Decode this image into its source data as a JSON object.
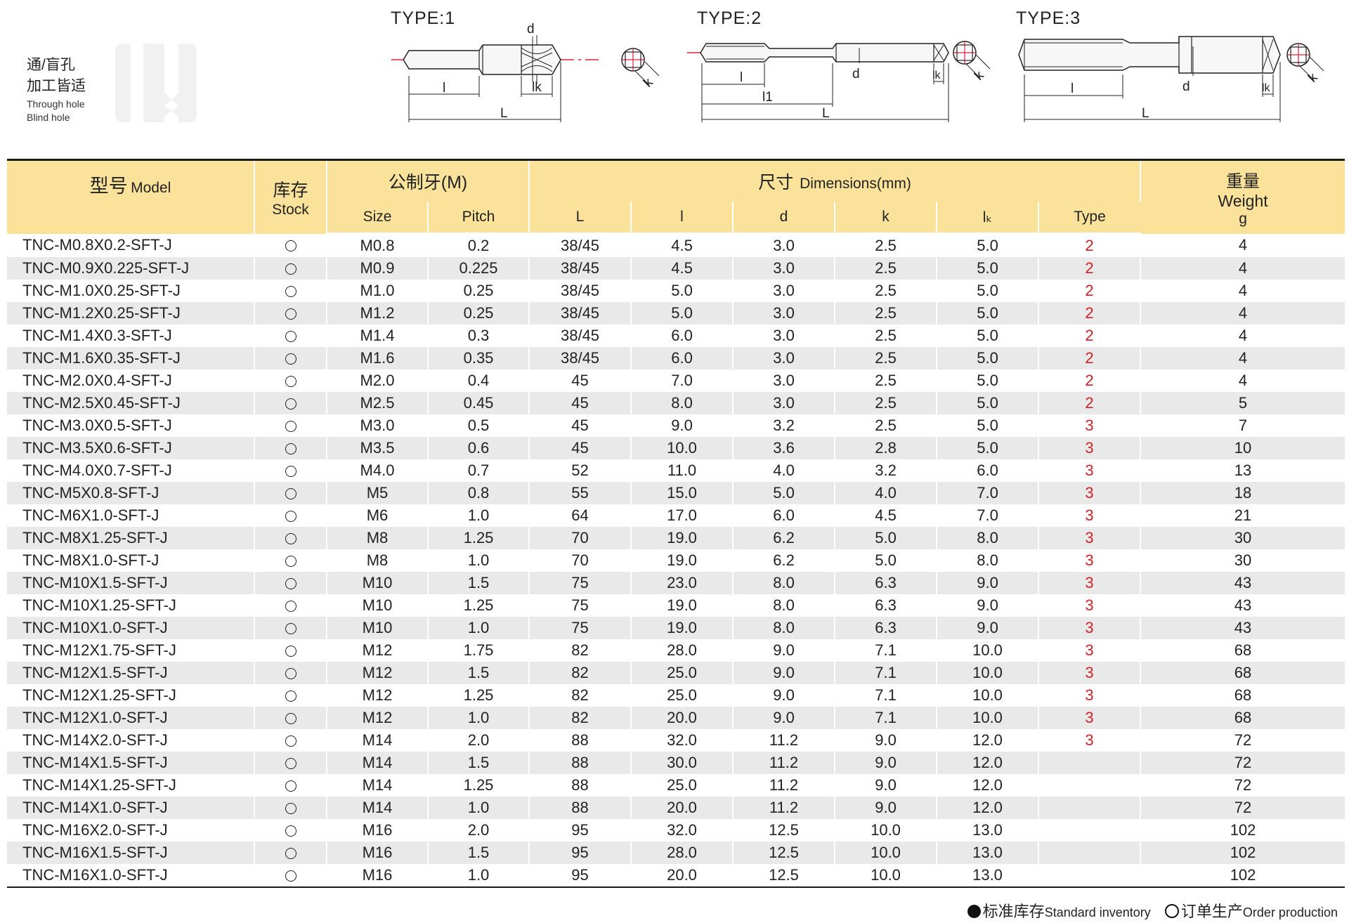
{
  "usage": {
    "line1": "通/盲孔",
    "line2": "加工皆适",
    "en1": "Through hole",
    "en2": "Blind hole"
  },
  "diagrams": [
    {
      "type_label": "TYPE:1",
      "labels": {
        "d": "d",
        "l": "l",
        "lk": "lk",
        "L": "L",
        "k": "k"
      }
    },
    {
      "type_label": "TYPE:2",
      "labels": {
        "d": "d",
        "l": "l",
        "l1": "l1",
        "lk": "lk",
        "L": "L",
        "k": "k"
      }
    },
    {
      "type_label": "TYPE:3",
      "labels": {
        "d": "d",
        "l": "l",
        "lk": "lk",
        "L": "L",
        "k": "k"
      }
    }
  ],
  "colors": {
    "header_bg": "#fbe29a",
    "stripe": "#e9e9e9",
    "type_red": "#d0202a",
    "centerline_red": "#e0203a"
  },
  "table": {
    "headers": {
      "model_cn": "型号",
      "model_en": "Model",
      "stock_cn": "库存",
      "stock_en": "Stock",
      "metric_cn": "公制牙(M)",
      "size": "Size",
      "pitch": "Pitch",
      "dims_cn": "尺寸",
      "dims_en": "Dimensions(mm)",
      "L": "L",
      "l": "l",
      "d": "d",
      "k": "k",
      "lk": "lₖ",
      "type": "Type",
      "weight_cn": "重量",
      "weight_en": "Weight",
      "weight_unit": "g"
    },
    "rows": [
      {
        "model": "TNC-M0.8X0.2-SFT-J",
        "size": "M0.8",
        "pitch": "0.2",
        "L": "38/45",
        "l": "4.5",
        "d": "3.0",
        "k": "2.5",
        "lk": "5.0",
        "type": "2",
        "weight": "4"
      },
      {
        "model": "TNC-M0.9X0.225-SFT-J",
        "size": "M0.9",
        "pitch": "0.225",
        "L": "38/45",
        "l": "4.5",
        "d": "3.0",
        "k": "2.5",
        "lk": "5.0",
        "type": "2",
        "weight": "4"
      },
      {
        "model": "TNC-M1.0X0.25-SFT-J",
        "size": "M1.0",
        "pitch": "0.25",
        "L": "38/45",
        "l": "5.0",
        "d": "3.0",
        "k": "2.5",
        "lk": "5.0",
        "type": "2",
        "weight": "4"
      },
      {
        "model": "TNC-M1.2X0.25-SFT-J",
        "size": "M1.2",
        "pitch": "0.25",
        "L": "38/45",
        "l": "5.0",
        "d": "3.0",
        "k": "2.5",
        "lk": "5.0",
        "type": "2",
        "weight": "4"
      },
      {
        "model": "TNC-M1.4X0.3-SFT-J",
        "size": "M1.4",
        "pitch": "0.3",
        "L": "38/45",
        "l": "6.0",
        "d": "3.0",
        "k": "2.5",
        "lk": "5.0",
        "type": "2",
        "weight": "4"
      },
      {
        "model": "TNC-M1.6X0.35-SFT-J",
        "size": "M1.6",
        "pitch": "0.35",
        "L": "38/45",
        "l": "6.0",
        "d": "3.0",
        "k": "2.5",
        "lk": "5.0",
        "type": "2",
        "weight": "4"
      },
      {
        "model": "TNC-M2.0X0.4-SFT-J",
        "size": "M2.0",
        "pitch": "0.4",
        "L": "45",
        "l": "7.0",
        "d": "3.0",
        "k": "2.5",
        "lk": "5.0",
        "type": "2",
        "weight": "4"
      },
      {
        "model": "TNC-M2.5X0.45-SFT-J",
        "size": "M2.5",
        "pitch": "0.45",
        "L": "45",
        "l": "8.0",
        "d": "3.0",
        "k": "2.5",
        "lk": "5.0",
        "type": "2",
        "weight": "5"
      },
      {
        "model": "TNC-M3.0X0.5-SFT-J",
        "size": "M3.0",
        "pitch": "0.5",
        "L": "45",
        "l": "9.0",
        "d": "3.2",
        "k": "2.5",
        "lk": "5.0",
        "type": "3",
        "weight": "7"
      },
      {
        "model": "TNC-M3.5X0.6-SFT-J",
        "size": "M3.5",
        "pitch": "0.6",
        "L": "45",
        "l": "10.0",
        "d": "3.6",
        "k": "2.8",
        "lk": "5.0",
        "type": "3",
        "weight": "10"
      },
      {
        "model": "TNC-M4.0X0.7-SFT-J",
        "size": "M4.0",
        "pitch": "0.7",
        "L": "52",
        "l": "11.0",
        "d": "4.0",
        "k": "3.2",
        "lk": "6.0",
        "type": "3",
        "weight": "13"
      },
      {
        "model": "TNC-M5X0.8-SFT-J",
        "size": "M5",
        "pitch": "0.8",
        "L": "55",
        "l": "15.0",
        "d": "5.0",
        "k": "4.0",
        "lk": "7.0",
        "type": "3",
        "weight": "18"
      },
      {
        "model": "TNC-M6X1.0-SFT-J",
        "size": "M6",
        "pitch": "1.0",
        "L": "64",
        "l": "17.0",
        "d": "6.0",
        "k": "4.5",
        "lk": "7.0",
        "type": "3",
        "weight": "21"
      },
      {
        "model": "TNC-M8X1.25-SFT-J",
        "size": "M8",
        "pitch": "1.25",
        "L": "70",
        "l": "19.0",
        "d": "6.2",
        "k": "5.0",
        "lk": "8.0",
        "type": "3",
        "weight": "30"
      },
      {
        "model": "TNC-M8X1.0-SFT-J",
        "size": "M8",
        "pitch": "1.0",
        "L": "70",
        "l": "19.0",
        "d": "6.2",
        "k": "5.0",
        "lk": "8.0",
        "type": "3",
        "weight": "30"
      },
      {
        "model": "TNC-M10X1.5-SFT-J",
        "size": "M10",
        "pitch": "1.5",
        "L": "75",
        "l": "23.0",
        "d": "8.0",
        "k": "6.3",
        "lk": "9.0",
        "type": "3",
        "weight": "43"
      },
      {
        "model": "TNC-M10X1.25-SFT-J",
        "size": "M10",
        "pitch": "1.25",
        "L": "75",
        "l": "19.0",
        "d": "8.0",
        "k": "6.3",
        "lk": "9.0",
        "type": "3",
        "weight": "43"
      },
      {
        "model": "TNC-M10X1.0-SFT-J",
        "size": "M10",
        "pitch": "1.0",
        "L": "75",
        "l": "19.0",
        "d": "8.0",
        "k": "6.3",
        "lk": "9.0",
        "type": "3",
        "weight": "43"
      },
      {
        "model": "TNC-M12X1.75-SFT-J",
        "size": "M12",
        "pitch": "1.75",
        "L": "82",
        "l": "28.0",
        "d": "9.0",
        "k": "7.1",
        "lk": "10.0",
        "type": "3",
        "weight": "68"
      },
      {
        "model": "TNC-M12X1.5-SFT-J",
        "size": "M12",
        "pitch": "1.5",
        "L": "82",
        "l": "25.0",
        "d": "9.0",
        "k": "7.1",
        "lk": "10.0",
        "type": "3",
        "weight": "68"
      },
      {
        "model": "TNC-M12X1.25-SFT-J",
        "size": "M12",
        "pitch": "1.25",
        "L": "82",
        "l": "25.0",
        "d": "9.0",
        "k": "7.1",
        "lk": "10.0",
        "type": "3",
        "weight": "68"
      },
      {
        "model": "TNC-M12X1.0-SFT-J",
        "size": "M12",
        "pitch": "1.0",
        "L": "82",
        "l": "20.0",
        "d": "9.0",
        "k": "7.1",
        "lk": "10.0",
        "type": "3",
        "weight": "68"
      },
      {
        "model": "TNC-M14X2.0-SFT-J",
        "size": "M14",
        "pitch": "2.0",
        "L": "88",
        "l": "32.0",
        "d": "11.2",
        "k": "9.0",
        "lk": "12.0",
        "type": "3",
        "weight": "72"
      },
      {
        "model": "TNC-M14X1.5-SFT-J",
        "size": "M14",
        "pitch": "1.5",
        "L": "88",
        "l": "30.0",
        "d": "11.2",
        "k": "9.0",
        "lk": "12.0",
        "type": "",
        "weight": "72"
      },
      {
        "model": "TNC-M14X1.25-SFT-J",
        "size": "M14",
        "pitch": "1.25",
        "L": "88",
        "l": "25.0",
        "d": "11.2",
        "k": "9.0",
        "lk": "12.0",
        "type": "",
        "weight": "72"
      },
      {
        "model": "TNC-M14X1.0-SFT-J",
        "size": "M14",
        "pitch": "1.0",
        "L": "88",
        "l": "20.0",
        "d": "11.2",
        "k": "9.0",
        "lk": "12.0",
        "type": "",
        "weight": "72"
      },
      {
        "model": "TNC-M16X2.0-SFT-J",
        "size": "M16",
        "pitch": "2.0",
        "L": "95",
        "l": "32.0",
        "d": "12.5",
        "k": "10.0",
        "lk": "13.0",
        "type": "",
        "weight": "102"
      },
      {
        "model": "TNC-M16X1.5-SFT-J",
        "size": "M16",
        "pitch": "1.5",
        "L": "95",
        "l": "28.0",
        "d": "12.5",
        "k": "10.0",
        "lk": "13.0",
        "type": "",
        "weight": "102"
      },
      {
        "model": "TNC-M16X1.0-SFT-J",
        "size": "M16",
        "pitch": "1.0",
        "L": "95",
        "l": "20.0",
        "d": "12.5",
        "k": "10.0",
        "lk": "13.0",
        "type": "",
        "weight": "102"
      }
    ]
  },
  "legend": {
    "standard_cn": "标准库存",
    "standard_en": "Standard inventory",
    "order_cn": "订单生产",
    "order_en": "Order production"
  }
}
